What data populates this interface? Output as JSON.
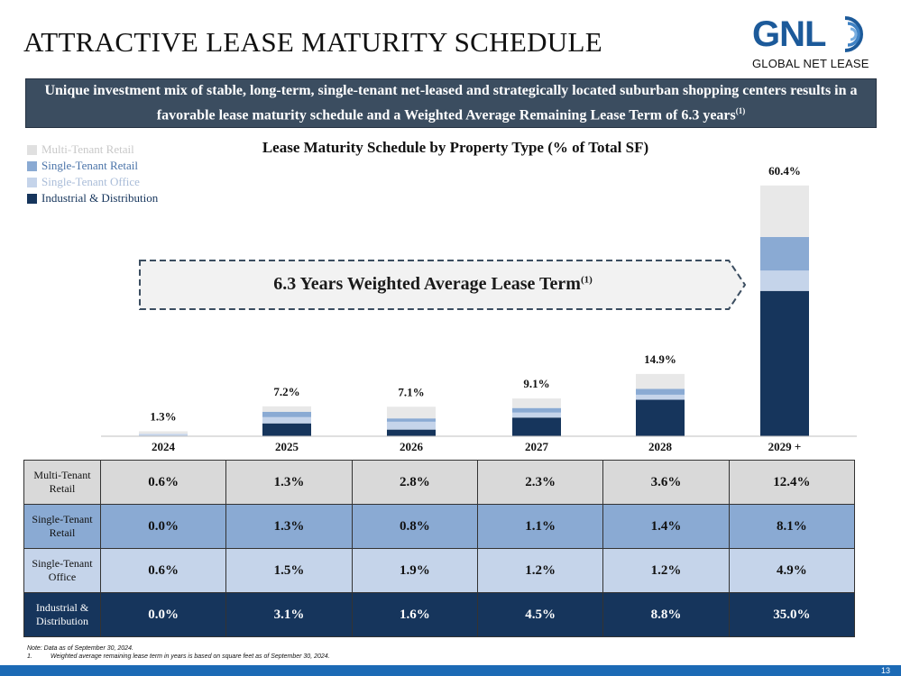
{
  "header": {
    "title": "ATTRACTIVE LEASE MATURITY SCHEDULE",
    "logo_text": "GNL",
    "logo_subtitle": "GLOBAL NET LEASE"
  },
  "banner": {
    "text": "Unique investment mix of stable, long-term, single-tenant net-leased and strategically located suburban shopping centers results in a favorable lease maturity schedule and a Weighted Average Remaining Lease Term of 6.3 years",
    "footnote_ref": "(1)"
  },
  "callout": {
    "text": "6.3 Years Weighted Average Lease Term",
    "footnote_ref": "(1)"
  },
  "chart_data": {
    "type": "bar",
    "stacked": true,
    "title": "Lease Maturity Schedule by Property Type (% of Total SF)",
    "categories": [
      "2024",
      "2025",
      "2026",
      "2027",
      "2028",
      "2029 +"
    ],
    "totals": [
      "1.3%",
      "7.2%",
      "7.1%",
      "9.1%",
      "14.9%",
      "60.4%"
    ],
    "series": [
      {
        "name": "Industrial & Distribution",
        "color": "#16355c",
        "values": [
          0.0,
          3.1,
          1.6,
          4.5,
          8.8,
          35.0
        ]
      },
      {
        "name": "Single-Tenant Office",
        "color": "#c5d4ea",
        "values": [
          0.6,
          1.5,
          1.9,
          1.2,
          1.2,
          4.9
        ]
      },
      {
        "name": "Single-Tenant Retail",
        "color": "#8aaad3",
        "values": [
          0.0,
          1.3,
          0.8,
          1.1,
          1.4,
          8.1
        ]
      },
      {
        "name": "Multi-Tenant Retail",
        "color": "#e8e8e8",
        "values": [
          0.6,
          1.3,
          2.8,
          2.3,
          3.6,
          12.4
        ]
      }
    ],
    "legend": [
      {
        "name": "Multi-Tenant Retail",
        "color": "#e0e0e0",
        "text_color": "#c8c8c8"
      },
      {
        "name": "Single-Tenant Retail",
        "color": "#8aaad3",
        "text_color": "#4a73a8"
      },
      {
        "name": "Single-Tenant Office",
        "color": "#c5d4ea",
        "text_color": "#a9bcd8"
      },
      {
        "name": "Industrial & Distribution",
        "color": "#16355c",
        "text_color": "#16355c"
      }
    ],
    "ylim": [
      0,
      61
    ]
  },
  "table": {
    "rows": [
      {
        "label_line1": "Multi-Tenant",
        "label_line2": "Retail",
        "values": [
          "0.6%",
          "1.3%",
          "2.8%",
          "2.3%",
          "3.6%",
          "12.4%"
        ]
      },
      {
        "label_line1": "Single-Tenant",
        "label_line2": "Retail",
        "values": [
          "0.0%",
          "1.3%",
          "0.8%",
          "1.1%",
          "1.4%",
          "8.1%"
        ]
      },
      {
        "label_line1": "Single-Tenant",
        "label_line2": "Office",
        "values": [
          "0.6%",
          "1.5%",
          "1.9%",
          "1.2%",
          "1.2%",
          "4.9%"
        ]
      },
      {
        "label_line1": "Industrial &",
        "label_line2": "Distribution",
        "values": [
          "0.0%",
          "3.1%",
          "1.6%",
          "4.5%",
          "8.8%",
          "35.0%"
        ]
      }
    ]
  },
  "notes": {
    "note": "Note: Data as of September 30, 2024.",
    "footnote_num": "1.",
    "footnote_text": "Weighted average remaining lease term in years is based on square feet as of September 30, 2024."
  },
  "page_number": "13"
}
